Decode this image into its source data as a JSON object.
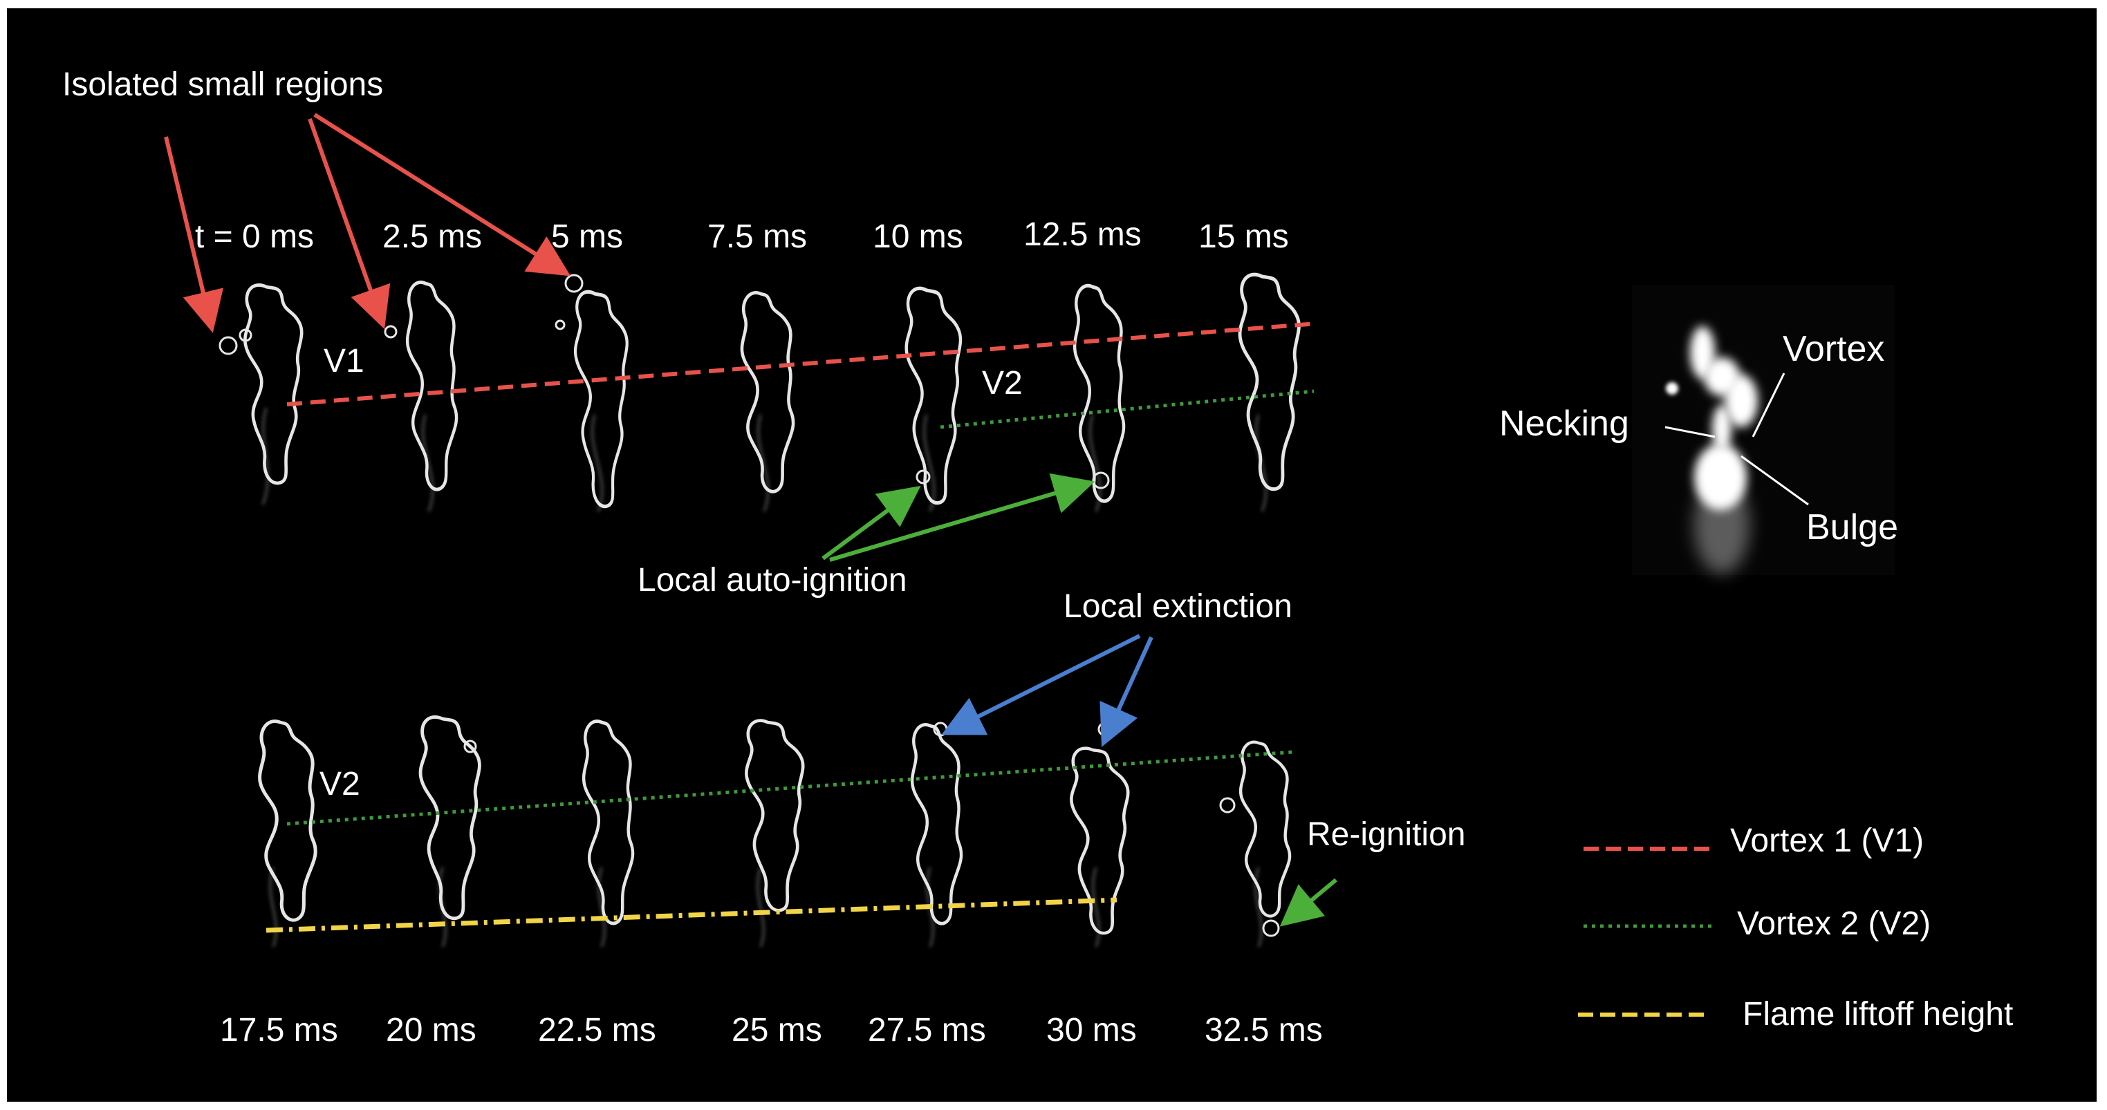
{
  "annotations": {
    "isolated": "Isolated small regions",
    "auto_ignition": "Local auto-ignition",
    "extinction": "Local extinction",
    "reignition": "Re-ignition",
    "v1": "V1",
    "v2_top": "V2",
    "v2_bottom": "V2"
  },
  "top_times": [
    "t = 0 ms",
    "2.5 ms",
    "5 ms",
    "7.5 ms",
    "10 ms",
    "12.5 ms",
    "15 ms"
  ],
  "bottom_times": [
    "17.5 ms",
    "20 ms",
    "22.5 ms",
    "25 ms",
    "27.5 ms",
    "30 ms",
    "32.5 ms"
  ],
  "inset": {
    "vortex": "Vortex",
    "necking": "Necking",
    "bulge": "Bulge"
  },
  "legend": [
    {
      "label": "Vortex 1 (V1)",
      "color": "#e8524a",
      "style": "dashed"
    },
    {
      "label": "Vortex 2 (V2)",
      "color": "#3e9a3a",
      "style": "dotted"
    },
    {
      "label": "Flame liftoff height",
      "color": "#f2d547",
      "style": "dashed"
    }
  ],
  "colors": {
    "background": "#000000",
    "text": "#ffffff",
    "isolated_arrow": "#e8524a",
    "ignition_arrow": "#4caf3a",
    "extinction_arrow": "#4a7fd0",
    "flame_edge": "#e6e6e6"
  }
}
